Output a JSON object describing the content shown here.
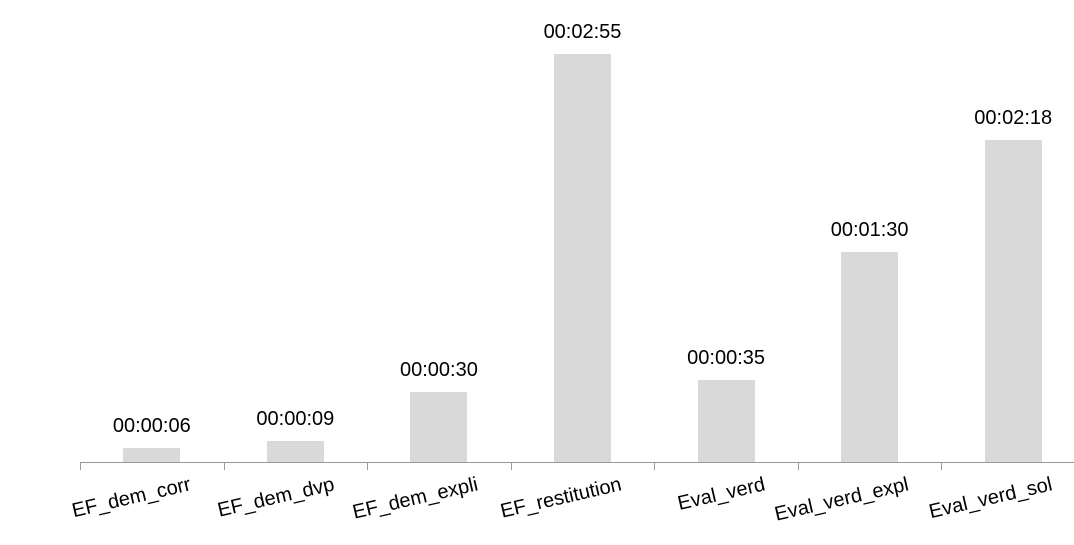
{
  "chart_data": {
    "type": "bar",
    "categories": [
      "EF_dem_corr",
      "EF_dem_dvp",
      "EF_dem_expli",
      "EF_restitution",
      "Eval_verd",
      "Eval_verd_expl",
      "Eval_verd_sol"
    ],
    "values": [
      6,
      9,
      30,
      175,
      35,
      90,
      138
    ],
    "value_unit": "seconds",
    "data_labels": [
      "00:00:06",
      "00:00:09",
      "00:00:30",
      "00:02:55",
      "00:00:35",
      "00:01:30",
      "00:02:18"
    ],
    "title": "",
    "xlabel": "",
    "ylabel": "",
    "ylim": [
      0,
      175
    ],
    "y_axis_visible": false,
    "grid": false,
    "legend": "none",
    "tick_label_rotation_deg": -13,
    "colors": {
      "bar": "#d9d9d9",
      "axis": "#9a9a9a",
      "text": "#000000",
      "background": "#ffffff"
    }
  }
}
